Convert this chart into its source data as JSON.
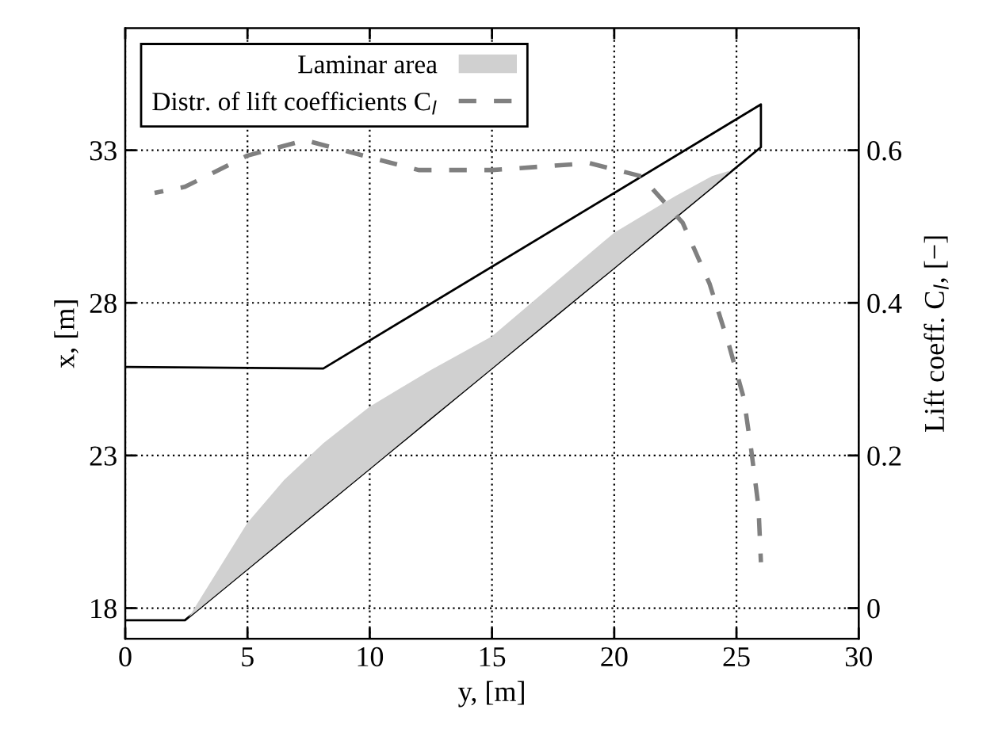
{
  "chart_data": {
    "type": "line",
    "xlabel": "y, [m]",
    "ylabel": "x, [m]",
    "y2label": "Lift coeff. C$_{l}$, [−]",
    "series": [
      {
        "color": "#000000",
        "x": [
          0,
          8.1,
          26,
          26,
          2.44,
          0
        ],
        "values": [
          25.9,
          25.85,
          34.5,
          33.1,
          17.6,
          17.6
        ]
      },
      {
        "type": "area",
        "name": "Laminar area",
        "color": "#d0d0d0",
        "x": [
          2.6,
          5,
          6.5,
          8.1,
          10,
          12.5,
          15,
          17.5,
          20,
          22.5,
          24,
          24.8,
          24,
          22.5,
          20,
          17.5,
          15,
          12.5,
          10,
          8.1,
          6.5,
          5
        ],
        "values": [
          17.7,
          20.8,
          22.2,
          23.4,
          24.6,
          25.8,
          26.9,
          28.6,
          30.3,
          31.5,
          32.15,
          32.35,
          31.79,
          30.8,
          29.15,
          27.51,
          25.86,
          24.22,
          22.57,
          21.32,
          20.27,
          19.28
        ]
      },
      {
        "name": "Distr. of lift coefficients C$_{l}$",
        "color": "#808080",
        "axis": "y2",
        "line_style": "dashed",
        "x": [
          1.2,
          2.44,
          5,
          7.36,
          10.2,
          12,
          15,
          19,
          21.1,
          22.8,
          23.9,
          24.7,
          25.3,
          25.6,
          25.9,
          26.0
        ],
        "values": [
          0.544,
          0.552,
          0.593,
          0.613,
          0.589,
          0.574,
          0.574,
          0.583,
          0.566,
          0.505,
          0.425,
          0.344,
          0.275,
          0.208,
          0.133,
          0.06
        ]
      }
    ],
    "xlim": [
      0,
      30
    ],
    "xticks": [
      0,
      5,
      10,
      15,
      20,
      25,
      30
    ],
    "ylim": [
      17,
      37
    ],
    "yticks": [
      18,
      23,
      28,
      33
    ],
    "y2lim": [
      -0.04,
      0.76
    ],
    "y2ticks": [
      0,
      0.2,
      0.4,
      0.6
    ],
    "grid": true,
    "legend": "top left"
  }
}
